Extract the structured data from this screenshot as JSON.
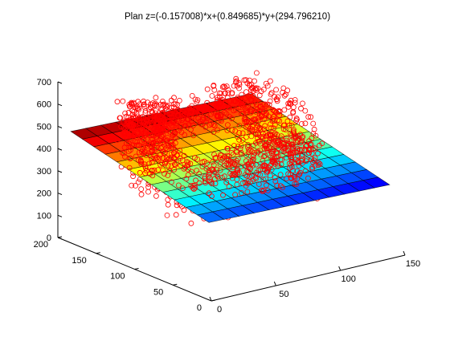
{
  "chart_data": {
    "type": "scatter3d",
    "title": "Plan z=(-0.157008)*x+(0.849685)*y+(294.796210)",
    "plane": {
      "a": -0.157008,
      "b": 0.849685,
      "c": 294.79621
    },
    "x_ticks": [
      "0",
      "50",
      "100",
      "150"
    ],
    "y_ticks": [
      "0",
      "50",
      "100",
      "150",
      "200"
    ],
    "z_ticks": [
      "0",
      "100",
      "200",
      "300",
      "400",
      "500",
      "600",
      "700"
    ],
    "xlim": [
      0,
      150
    ],
    "ylim": [
      0,
      200
    ],
    "zlim": [
      0,
      700
    ],
    "colormap": "jet",
    "colors": {
      "points": "#ff0000",
      "mesh": "#000000",
      "axes": "#000000"
    }
  }
}
